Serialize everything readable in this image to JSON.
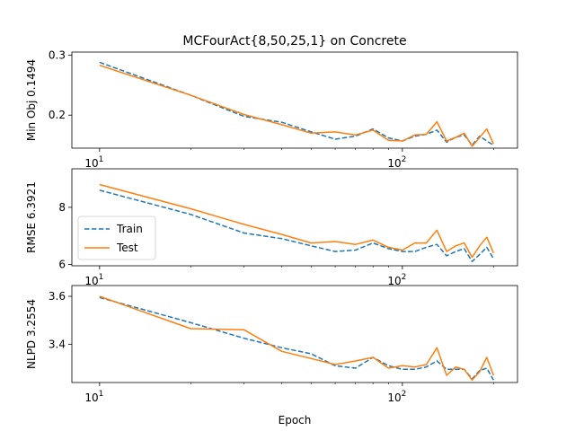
{
  "chart_data": {
    "title": "MCFourAct{8,50,25,1} on Concrete",
    "xlabel": "Epoch",
    "xscale": "log",
    "xlim": [
      8.1,
      240
    ],
    "colors": {
      "train": "#1f77b4",
      "test": "#ff7f0e"
    },
    "legend": {
      "entries": [
        "Train",
        "Test"
      ],
      "location": "lower-left of middle panel"
    },
    "panels": [
      {
        "type": "line",
        "ylabel": "Min Obj 0.1494",
        "ylim": [
          0.145,
          0.305
        ],
        "yticks": [
          0.2,
          0.3
        ],
        "ytick_labels": [
          "0.2",
          "0.3"
        ],
        "series": [
          {
            "name": "Train",
            "style": "dashed",
            "x": [
              10,
              20,
              30,
              40,
              50,
              60,
              70,
              80,
              90,
              100,
              110,
              120,
              130,
              140,
              150,
              160,
              170,
              180,
              190,
              200
            ],
            "y": [
              0.288,
              0.233,
              0.198,
              0.188,
              0.172,
              0.16,
              0.165,
              0.177,
              0.162,
              0.157,
              0.165,
              0.168,
              0.175,
              0.155,
              0.163,
              0.167,
              0.15,
              0.165,
              0.157,
              0.15
            ]
          },
          {
            "name": "Test",
            "style": "solid",
            "x": [
              10,
              20,
              30,
              40,
              50,
              60,
              70,
              80,
              90,
              100,
              110,
              120,
              130,
              140,
              150,
              160,
              170,
              180,
              190,
              200
            ],
            "y": [
              0.283,
              0.233,
              0.201,
              0.184,
              0.17,
              0.172,
              0.167,
              0.175,
              0.158,
              0.157,
              0.167,
              0.168,
              0.189,
              0.157,
              0.163,
              0.17,
              0.148,
              0.163,
              0.177,
              0.152
            ]
          }
        ]
      },
      {
        "type": "line",
        "ylabel": "RMSE 6.3921",
        "ylim": [
          5.95,
          9.35
        ],
        "yticks": [
          6,
          8
        ],
        "ytick_labels": [
          "6",
          "8"
        ],
        "series": [
          {
            "name": "Train",
            "style": "dashed",
            "x": [
              10,
              20,
              30,
              40,
              50,
              60,
              70,
              80,
              90,
              100,
              110,
              120,
              130,
              140,
              150,
              160,
              170,
              180,
              190,
              200
            ],
            "y": [
              8.6,
              7.75,
              7.1,
              6.9,
              6.65,
              6.45,
              6.5,
              6.75,
              6.55,
              6.45,
              6.45,
              6.6,
              6.7,
              6.3,
              6.45,
              6.55,
              6.1,
              6.35,
              6.6,
              6.2
            ]
          },
          {
            "name": "Test",
            "style": "solid",
            "x": [
              10,
              20,
              30,
              40,
              50,
              60,
              70,
              80,
              90,
              100,
              110,
              120,
              130,
              140,
              150,
              160,
              170,
              180,
              190,
              200
            ],
            "y": [
              8.8,
              7.95,
              7.4,
              7.05,
              6.75,
              6.8,
              6.7,
              6.85,
              6.6,
              6.5,
              6.75,
              6.75,
              7.2,
              6.45,
              6.65,
              6.75,
              6.25,
              6.65,
              6.95,
              6.4
            ]
          }
        ]
      },
      {
        "type": "line",
        "ylabel": "NLPD 3.2554",
        "ylim": [
          3.24,
          3.645
        ],
        "yticks": [
          3.4,
          3.6
        ],
        "ytick_labels": [
          "3.4",
          "3.6"
        ],
        "series": [
          {
            "name": "Train",
            "style": "dashed",
            "x": [
              10,
              20,
              30,
              40,
              50,
              60,
              70,
              80,
              90,
              100,
              110,
              120,
              130,
              140,
              150,
              160,
              170,
              180,
              190,
              200
            ],
            "y": [
              3.595,
              3.49,
              3.425,
              3.385,
              3.36,
              3.31,
              3.3,
              3.345,
              3.31,
              3.295,
              3.295,
              3.305,
              3.33,
              3.295,
              3.295,
              3.295,
              3.255,
              3.29,
              3.3,
              3.25
            ]
          },
          {
            "name": "Test",
            "style": "solid",
            "x": [
              10,
              20,
              30,
              40,
              50,
              60,
              70,
              80,
              90,
              100,
              110,
              120,
              130,
              140,
              150,
              160,
              170,
              180,
              190,
              200
            ],
            "y": [
              3.6,
              3.465,
              3.46,
              3.37,
              3.34,
              3.315,
              3.33,
              3.345,
              3.3,
              3.31,
              3.305,
              3.315,
              3.385,
              3.27,
              3.305,
              3.295,
              3.25,
              3.285,
              3.345,
              3.27
            ]
          }
        ]
      }
    ],
    "xticks": [
      {
        "value": 10,
        "base": "10",
        "exp": "1"
      },
      {
        "value": 100,
        "base": "10",
        "exp": "2"
      }
    ],
    "minor_xticks": [
      20,
      30,
      40,
      50,
      60,
      70,
      80,
      90,
      200
    ]
  }
}
